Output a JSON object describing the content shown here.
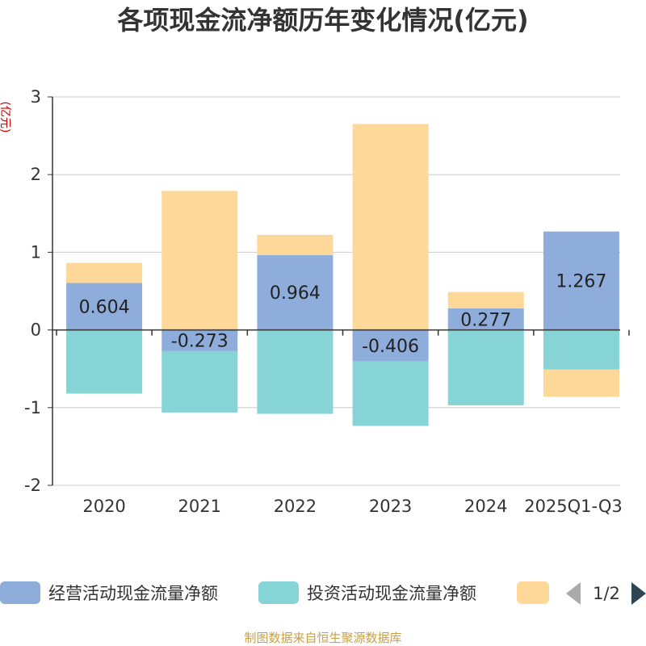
{
  "chart_data": {
    "type": "bar",
    "stacked": true,
    "title": "各项现金流净额历年变化情况(亿元)",
    "ylabel": "(亿元)",
    "categories": [
      "2020",
      "2021",
      "2022",
      "2023",
      "2024",
      "2025Q1-Q3"
    ],
    "ylim": [
      -2,
      3
    ],
    "yticks": [
      -2,
      -1,
      0,
      1,
      2,
      3
    ],
    "grid": true,
    "legend_position": "bottom",
    "series": [
      {
        "name": "经营活动现金流量净额",
        "color": "#8eaddb",
        "values": [
          0.604,
          -0.273,
          0.964,
          -0.406,
          0.277,
          1.267
        ],
        "labels": [
          "0.604",
          "-0.273",
          "0.964",
          "-0.406",
          "0.277",
          "1.267"
        ]
      },
      {
        "name": "投资活动现金流量净额",
        "color": "#86d4d6",
        "values": [
          -0.82,
          -0.79,
          -1.08,
          -0.83,
          -0.97,
          -0.51
        ]
      },
      {
        "name": "",
        "color": "#fed898",
        "values": [
          0.26,
          1.79,
          0.26,
          2.65,
          0.21,
          -0.35
        ]
      }
    ]
  },
  "legend_page": "1/2",
  "source": "制图数据来自恒生聚源数据库"
}
